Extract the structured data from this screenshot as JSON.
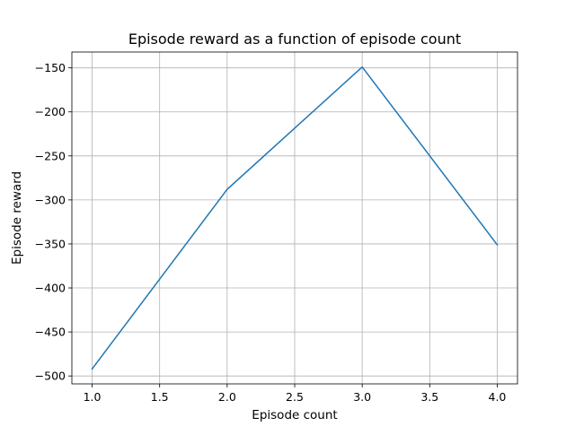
{
  "chart_data": {
    "type": "line",
    "title": "Episode reward as a function of episode count",
    "xlabel": "Episode count",
    "ylabel": "Episode reward",
    "x": [
      1,
      2,
      3,
      4
    ],
    "series": [
      {
        "values": [
          -492,
          -288,
          -149,
          -351
        ],
        "color": "#1f77b4"
      }
    ],
    "xlim": [
      0.85,
      4.15
    ],
    "ylim": [
      -509,
      -132
    ],
    "xticks": [
      1.0,
      1.5,
      2.0,
      2.5,
      3.0,
      3.5,
      4.0
    ],
    "xtick_labels": [
      "1.0",
      "1.5",
      "2.0",
      "2.5",
      "3.0",
      "3.5",
      "4.0"
    ],
    "yticks": [
      -500,
      -450,
      -400,
      -350,
      -300,
      -250,
      -200,
      -150
    ],
    "ytick_labels": [
      "−500",
      "−450",
      "−400",
      "−350",
      "−300",
      "−250",
      "−200",
      "−150"
    ],
    "grid": true,
    "legend": "none"
  }
}
